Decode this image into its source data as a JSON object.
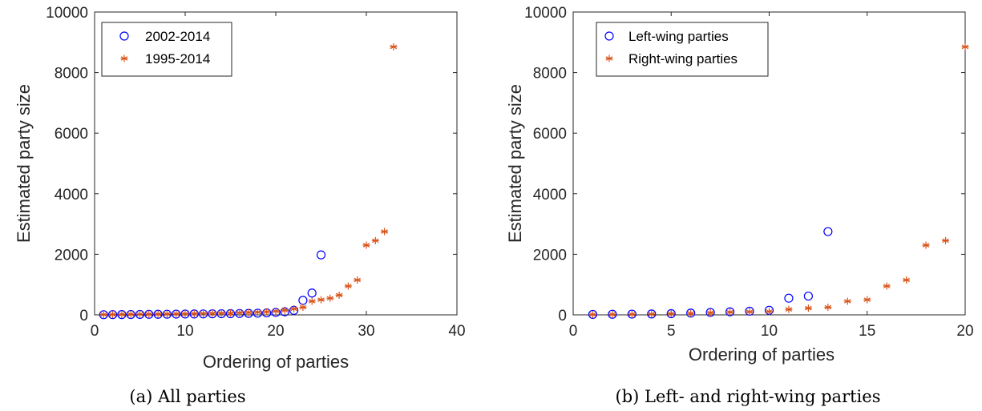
{
  "chart_data": [
    {
      "type": "scatter",
      "caption": "(a) All parties",
      "xlabel": "Ordering of parties",
      "ylabel": "Estimated party size",
      "xlim": [
        0,
        40
      ],
      "ylim": [
        0,
        10000
      ],
      "xticks": [
        "0",
        "10",
        "20",
        "30",
        "40"
      ],
      "yticks": [
        "0",
        "2000",
        "4000",
        "6000",
        "8000",
        "10000"
      ],
      "legend_position": "top-left",
      "series": [
        {
          "name": "2002-2014",
          "marker": "circle",
          "color": "#0000ff",
          "x": [
            1,
            2,
            3,
            4,
            5,
            6,
            7,
            8,
            9,
            10,
            11,
            12,
            13,
            14,
            15,
            16,
            17,
            18,
            19,
            20,
            21,
            22,
            23,
            24,
            25
          ],
          "y": [
            5,
            8,
            10,
            12,
            15,
            18,
            20,
            22,
            25,
            28,
            30,
            32,
            35,
            38,
            40,
            45,
            50,
            55,
            65,
            80,
            100,
            150,
            480,
            720,
            1980
          ]
        },
        {
          "name": "1995-2014",
          "marker": "asterisk",
          "color": "#d95319",
          "x": [
            1,
            2,
            3,
            4,
            5,
            6,
            7,
            8,
            9,
            10,
            11,
            12,
            13,
            14,
            15,
            16,
            17,
            18,
            19,
            20,
            21,
            22,
            23,
            24,
            25,
            26,
            27,
            28,
            29,
            30,
            31,
            32,
            33
          ],
          "y": [
            10,
            12,
            15,
            18,
            20,
            22,
            25,
            28,
            32,
            36,
            40,
            45,
            50,
            55,
            60,
            70,
            80,
            90,
            100,
            120,
            150,
            200,
            250,
            450,
            500,
            550,
            650,
            950,
            1150,
            2300,
            2450,
            2750,
            8850
          ]
        }
      ]
    },
    {
      "type": "scatter",
      "caption": "(b) Left- and right-wing parties",
      "xlabel": "Ordering of parties",
      "ylabel": "Estimated party size",
      "xlim": [
        0,
        20
      ],
      "ylim": [
        0,
        10000
      ],
      "xticks": [
        "0",
        "5",
        "10",
        "15",
        "20"
      ],
      "yticks": [
        "0",
        "2000",
        "4000",
        "6000",
        "8000",
        "10000"
      ],
      "legend_position": "top-left",
      "series": [
        {
          "name": "Left-wing parties",
          "marker": "circle",
          "color": "#0000ff",
          "x": [
            1,
            2,
            3,
            4,
            5,
            6,
            7,
            8,
            9,
            10,
            11,
            12,
            13
          ],
          "y": [
            15,
            20,
            25,
            30,
            40,
            60,
            80,
            100,
            120,
            150,
            550,
            620,
            2750
          ]
        },
        {
          "name": "Right-wing parties",
          "marker": "asterisk",
          "color": "#d95319",
          "x": [
            1,
            2,
            3,
            4,
            5,
            6,
            7,
            8,
            9,
            10,
            11,
            12,
            13,
            14,
            15,
            16,
            17,
            18,
            19,
            20
          ],
          "y": [
            10,
            15,
            20,
            25,
            35,
            50,
            70,
            90,
            100,
            110,
            180,
            220,
            250,
            450,
            500,
            950,
            1150,
            2300,
            2450,
            8850
          ]
        }
      ]
    }
  ]
}
